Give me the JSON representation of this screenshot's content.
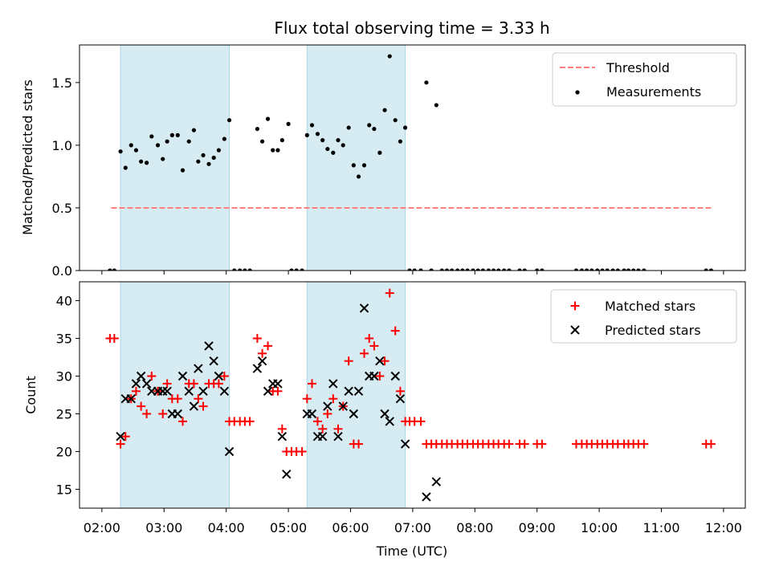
{
  "chart_data": {
    "type": "scatter",
    "title": "Flux total observing time = 3.33 h",
    "xlabel": "Time (UTC)",
    "x_tick_labels": [
      "02:00",
      "03:00",
      "04:00",
      "05:00",
      "06:00",
      "07:00",
      "08:00",
      "09:00",
      "10:00",
      "11:00",
      "12:00"
    ],
    "x_ticks_hours": [
      2,
      3,
      4,
      5,
      6,
      7,
      8,
      9,
      10,
      11,
      12
    ],
    "xlim_hours": [
      1.64,
      12.35
    ],
    "highlight_intervals_hours": [
      [
        2.3,
        4.05
      ],
      [
        5.3,
        6.88
      ]
    ],
    "highlight_color": "#add8e6",
    "top_panel": {
      "ylabel": "Matched/Predicted stars",
      "ylim": [
        0,
        1.8
      ],
      "y_ticks": [
        0.0,
        0.5,
        1.0,
        1.5
      ],
      "y_tick_labels": [
        "0.0",
        "0.5",
        "1.0",
        "1.5"
      ],
      "threshold": {
        "name": "Threshold",
        "value": 0.5,
        "x_range_hours": [
          2.15,
          11.8
        ],
        "color": "#ff7f7f"
      },
      "measurements_legend": "Measurements",
      "legend_position": "upper right",
      "measurements": [
        [
          2.13,
          0
        ],
        [
          2.2,
          0
        ],
        [
          2.3,
          0.95
        ],
        [
          2.38,
          0.82
        ],
        [
          2.47,
          1.0
        ],
        [
          2.55,
          0.96
        ],
        [
          2.63,
          0.87
        ],
        [
          2.72,
          0.86
        ],
        [
          2.8,
          1.07
        ],
        [
          2.9,
          1.0
        ],
        [
          2.98,
          0.89
        ],
        [
          3.05,
          1.03
        ],
        [
          3.13,
          1.08
        ],
        [
          3.22,
          1.08
        ],
        [
          3.3,
          0.8
        ],
        [
          3.4,
          1.03
        ],
        [
          3.48,
          1.12
        ],
        [
          3.55,
          0.87
        ],
        [
          3.63,
          0.92
        ],
        [
          3.72,
          0.85
        ],
        [
          3.8,
          0.9
        ],
        [
          3.88,
          0.96
        ],
        [
          3.97,
          1.05
        ],
        [
          4.05,
          1.2
        ],
        [
          4.13,
          0
        ],
        [
          4.22,
          0
        ],
        [
          4.3,
          0
        ],
        [
          4.38,
          0
        ],
        [
          4.5,
          1.13
        ],
        [
          4.58,
          1.03
        ],
        [
          4.67,
          1.21
        ],
        [
          4.75,
          0.96
        ],
        [
          4.83,
          0.96
        ],
        [
          4.9,
          1.04
        ],
        [
          5.0,
          1.17
        ],
        [
          5.05,
          0
        ],
        [
          5.13,
          0
        ],
        [
          5.22,
          0
        ],
        [
          5.3,
          1.08
        ],
        [
          5.38,
          1.16
        ],
        [
          5.47,
          1.09
        ],
        [
          5.55,
          1.04
        ],
        [
          5.63,
          0.97
        ],
        [
          5.72,
          0.94
        ],
        [
          5.8,
          1.04
        ],
        [
          5.88,
          1.0
        ],
        [
          5.97,
          1.14
        ],
        [
          6.05,
          0.84
        ],
        [
          6.13,
          0.75
        ],
        [
          6.22,
          0.84
        ],
        [
          6.3,
          1.16
        ],
        [
          6.38,
          1.13
        ],
        [
          6.47,
          0.94
        ],
        [
          6.55,
          1.28
        ],
        [
          6.63,
          1.71
        ],
        [
          6.72,
          1.2
        ],
        [
          6.8,
          1.03
        ],
        [
          6.88,
          1.14
        ],
        [
          6.95,
          0
        ],
        [
          7.03,
          0
        ],
        [
          7.13,
          0
        ],
        [
          7.22,
          1.5
        ],
        [
          7.3,
          0
        ],
        [
          7.38,
          1.32
        ],
        [
          7.47,
          0
        ],
        [
          7.55,
          0
        ],
        [
          7.63,
          0
        ],
        [
          7.72,
          0
        ],
        [
          7.8,
          0
        ],
        [
          7.88,
          0
        ],
        [
          7.97,
          0
        ],
        [
          8.05,
          0
        ],
        [
          8.13,
          0
        ],
        [
          8.22,
          0
        ],
        [
          8.3,
          0
        ],
        [
          8.38,
          0
        ],
        [
          8.47,
          0
        ],
        [
          8.55,
          0
        ],
        [
          8.72,
          0
        ],
        [
          8.8,
          0
        ],
        [
          9.0,
          0
        ],
        [
          9.08,
          0
        ],
        [
          9.63,
          0
        ],
        [
          9.72,
          0
        ],
        [
          9.8,
          0
        ],
        [
          9.88,
          0
        ],
        [
          9.97,
          0
        ],
        [
          10.05,
          0
        ],
        [
          10.13,
          0
        ],
        [
          10.22,
          0
        ],
        [
          10.3,
          0
        ],
        [
          10.4,
          0
        ],
        [
          10.47,
          0
        ],
        [
          10.55,
          0
        ],
        [
          10.63,
          0
        ],
        [
          10.72,
          0
        ],
        [
          11.72,
          0
        ],
        [
          11.8,
          0
        ]
      ]
    },
    "bottom_panel": {
      "ylabel": "Count",
      "ylim": [
        12.5,
        42.5
      ],
      "y_ticks": [
        15,
        20,
        25,
        30,
        35,
        40
      ],
      "y_tick_labels": [
        "15",
        "20",
        "25",
        "30",
        "35",
        "40"
      ],
      "legend_position": "upper right",
      "series": [
        {
          "name": "Matched stars",
          "marker": "plus",
          "color": "#ff0000",
          "points": [
            [
              2.13,
              35
            ],
            [
              2.2,
              35
            ],
            [
              2.3,
              21
            ],
            [
              2.38,
              22
            ],
            [
              2.47,
              27
            ],
            [
              2.55,
              28
            ],
            [
              2.63,
              26
            ],
            [
              2.72,
              25
            ],
            [
              2.8,
              30
            ],
            [
              2.9,
              28
            ],
            [
              2.98,
              25
            ],
            [
              3.05,
              29
            ],
            [
              3.13,
              27
            ],
            [
              3.22,
              27
            ],
            [
              3.3,
              24
            ],
            [
              3.4,
              29
            ],
            [
              3.48,
              29
            ],
            [
              3.55,
              27
            ],
            [
              3.63,
              26
            ],
            [
              3.72,
              29
            ],
            [
              3.8,
              29
            ],
            [
              3.88,
              29
            ],
            [
              3.97,
              30
            ],
            [
              4.05,
              24
            ],
            [
              4.13,
              24
            ],
            [
              4.22,
              24
            ],
            [
              4.3,
              24
            ],
            [
              4.38,
              24
            ],
            [
              4.5,
              35
            ],
            [
              4.58,
              33
            ],
            [
              4.67,
              34
            ],
            [
              4.75,
              28
            ],
            [
              4.83,
              28
            ],
            [
              4.9,
              23
            ],
            [
              4.97,
              20
            ],
            [
              5.05,
              20
            ],
            [
              5.13,
              20
            ],
            [
              5.22,
              20
            ],
            [
              5.3,
              27
            ],
            [
              5.38,
              29
            ],
            [
              5.47,
              24
            ],
            [
              5.55,
              23
            ],
            [
              5.63,
              25
            ],
            [
              5.72,
              27
            ],
            [
              5.8,
              23
            ],
            [
              5.88,
              26
            ],
            [
              5.97,
              32
            ],
            [
              6.05,
              21
            ],
            [
              6.13,
              21
            ],
            [
              6.22,
              33
            ],
            [
              6.3,
              35
            ],
            [
              6.38,
              34
            ],
            [
              6.47,
              30
            ],
            [
              6.55,
              32
            ],
            [
              6.63,
              41
            ],
            [
              6.72,
              36
            ],
            [
              6.8,
              28
            ],
            [
              6.88,
              24
            ],
            [
              6.95,
              24
            ],
            [
              7.03,
              24
            ],
            [
              7.13,
              24
            ],
            [
              7.22,
              21
            ],
            [
              7.3,
              21
            ],
            [
              7.38,
              21
            ],
            [
              7.47,
              21
            ],
            [
              7.55,
              21
            ],
            [
              7.63,
              21
            ],
            [
              7.72,
              21
            ],
            [
              7.8,
              21
            ],
            [
              7.88,
              21
            ],
            [
              7.97,
              21
            ],
            [
              8.05,
              21
            ],
            [
              8.13,
              21
            ],
            [
              8.22,
              21
            ],
            [
              8.3,
              21
            ],
            [
              8.38,
              21
            ],
            [
              8.47,
              21
            ],
            [
              8.55,
              21
            ],
            [
              8.72,
              21
            ],
            [
              8.8,
              21
            ],
            [
              9.0,
              21
            ],
            [
              9.08,
              21
            ],
            [
              9.63,
              21
            ],
            [
              9.72,
              21
            ],
            [
              9.8,
              21
            ],
            [
              9.88,
              21
            ],
            [
              9.97,
              21
            ],
            [
              10.05,
              21
            ],
            [
              10.13,
              21
            ],
            [
              10.22,
              21
            ],
            [
              10.3,
              21
            ],
            [
              10.4,
              21
            ],
            [
              10.47,
              21
            ],
            [
              10.55,
              21
            ],
            [
              10.63,
              21
            ],
            [
              10.72,
              21
            ],
            [
              11.72,
              21
            ],
            [
              11.8,
              21
            ]
          ]
        },
        {
          "name": "Predicted stars",
          "marker": "x",
          "color": "#000000",
          "points": [
            [
              2.3,
              22
            ],
            [
              2.38,
              27
            ],
            [
              2.47,
              27
            ],
            [
              2.55,
              29
            ],
            [
              2.63,
              30
            ],
            [
              2.72,
              29
            ],
            [
              2.8,
              28
            ],
            [
              2.9,
              28
            ],
            [
              2.98,
              28
            ],
            [
              3.05,
              28
            ],
            [
              3.13,
              25
            ],
            [
              3.22,
              25
            ],
            [
              3.3,
              30
            ],
            [
              3.4,
              28
            ],
            [
              3.48,
              26
            ],
            [
              3.55,
              31
            ],
            [
              3.63,
              28
            ],
            [
              3.72,
              34
            ],
            [
              3.8,
              32
            ],
            [
              3.88,
              30
            ],
            [
              3.97,
              28
            ],
            [
              4.05,
              20
            ],
            [
              4.5,
              31
            ],
            [
              4.58,
              32
            ],
            [
              4.67,
              28
            ],
            [
              4.75,
              29
            ],
            [
              4.83,
              29
            ],
            [
              4.9,
              22
            ],
            [
              4.97,
              17
            ],
            [
              5.3,
              25
            ],
            [
              5.38,
              25
            ],
            [
              5.47,
              22
            ],
            [
              5.55,
              22
            ],
            [
              5.63,
              26
            ],
            [
              5.72,
              29
            ],
            [
              5.8,
              22
            ],
            [
              5.88,
              26
            ],
            [
              5.97,
              28
            ],
            [
              6.05,
              25
            ],
            [
              6.13,
              28
            ],
            [
              6.22,
              39
            ],
            [
              6.3,
              30
            ],
            [
              6.38,
              30
            ],
            [
              6.47,
              32
            ],
            [
              6.55,
              25
            ],
            [
              6.63,
              24
            ],
            [
              6.72,
              30
            ],
            [
              6.8,
              27
            ],
            [
              6.88,
              21
            ],
            [
              7.22,
              14
            ],
            [
              7.38,
              16
            ]
          ]
        }
      ]
    }
  }
}
